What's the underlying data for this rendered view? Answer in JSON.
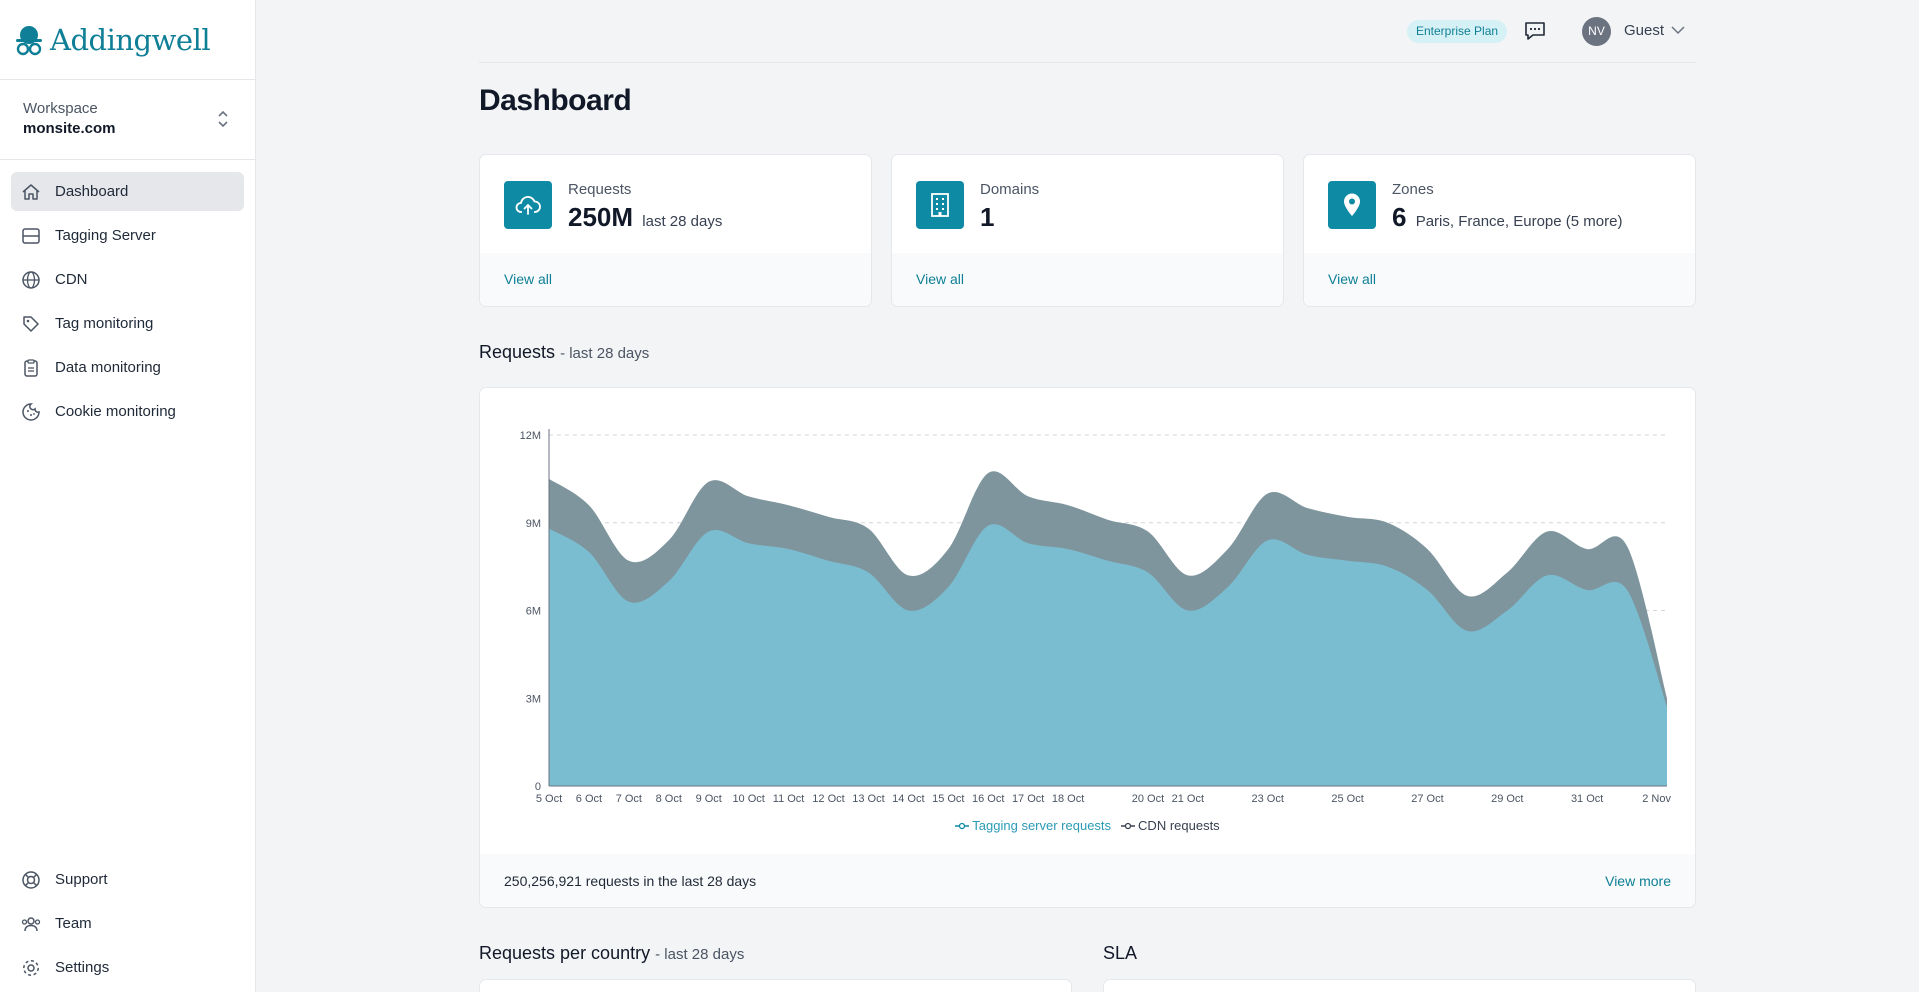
{
  "brand": {
    "name": "Addingwell"
  },
  "workspace": {
    "label": "Workspace",
    "value": "monsite.com"
  },
  "nav": {
    "items": [
      {
        "label": "Dashboard"
      },
      {
        "label": "Tagging Server"
      },
      {
        "label": "CDN"
      },
      {
        "label": "Tag monitoring"
      },
      {
        "label": "Data monitoring"
      },
      {
        "label": "Cookie monitoring"
      }
    ],
    "bottom": [
      {
        "label": "Support"
      },
      {
        "label": "Team"
      },
      {
        "label": "Settings"
      }
    ]
  },
  "header": {
    "plan": "Enterprise Plan",
    "avatar_initials": "NV",
    "user": "Guest"
  },
  "page": {
    "title": "Dashboard"
  },
  "cards": [
    {
      "label": "Requests",
      "value": "250M",
      "sub": "last 28 days",
      "link": "View all"
    },
    {
      "label": "Domains",
      "value": "1",
      "sub": "",
      "link": "View all"
    },
    {
      "label": "Zones",
      "value": "6",
      "sub": "Paris, France, Europe (5 more)",
      "link": "View all"
    }
  ],
  "requests_section": {
    "title": "Requests",
    "sub": "- last 28 days"
  },
  "chart_footer": {
    "summary": "250,256,921 requests in the last 28 days",
    "link": "View more"
  },
  "country_section": {
    "title": "Requests per country",
    "sub": "- last 28 days"
  },
  "sla_section": {
    "title": "SLA"
  },
  "colors": {
    "tagging": "#7bbdd0",
    "cdn": "#7e959d",
    "accent": "#0e7f96"
  },
  "chart_data": {
    "type": "area",
    "stacked": true,
    "y_ticks": [
      "0",
      "3M",
      "6M",
      "9M",
      "12M"
    ],
    "ylim": [
      0,
      12000000
    ],
    "x_labels": [
      "5 Oct",
      "6 Oct",
      "7 Oct",
      "8 Oct",
      "9 Oct",
      "10 Oct",
      "11 Oct",
      "12 Oct",
      "13 Oct",
      "14 Oct",
      "15 Oct",
      "16 Oct",
      "17 Oct",
      "18 Oct",
      "20 Oct",
      "21 Oct",
      "23 Oct",
      "25 Oct",
      "27 Oct",
      "29 Oct",
      "31 Oct",
      "2 Nov"
    ],
    "x": [
      "5 Oct",
      "6 Oct",
      "7 Oct",
      "8 Oct",
      "9 Oct",
      "10 Oct",
      "11 Oct",
      "12 Oct",
      "13 Oct",
      "14 Oct",
      "15 Oct",
      "16 Oct",
      "17 Oct",
      "18 Oct",
      "19 Oct",
      "20 Oct",
      "21 Oct",
      "22 Oct",
      "23 Oct",
      "24 Oct",
      "25 Oct",
      "26 Oct",
      "27 Oct",
      "28 Oct",
      "29 Oct",
      "30 Oct",
      "31 Oct",
      "1 Nov",
      "2 Nov"
    ],
    "series": [
      {
        "name": "Tagging server requests",
        "values": [
          8.8,
          8.0,
          6.3,
          7.0,
          8.7,
          8.3,
          8.1,
          7.7,
          7.3,
          6.0,
          6.8,
          8.9,
          8.3,
          8.1,
          7.7,
          7.3,
          6.0,
          6.8,
          8.4,
          7.9,
          7.7,
          7.5,
          6.7,
          5.3,
          6.0,
          7.2,
          6.7,
          6.7,
          2.7
        ]
      },
      {
        "name": "CDN requests",
        "values": [
          1.7,
          1.6,
          1.4,
          1.4,
          1.7,
          1.6,
          1.5,
          1.5,
          1.5,
          1.2,
          1.3,
          1.8,
          1.6,
          1.5,
          1.4,
          1.4,
          1.2,
          1.3,
          1.6,
          1.6,
          1.5,
          1.5,
          1.4,
          1.2,
          1.3,
          1.5,
          1.4,
          1.5,
          0.3
        ]
      }
    ],
    "value_unit": "M",
    "grid": true,
    "legend": "bottom"
  }
}
